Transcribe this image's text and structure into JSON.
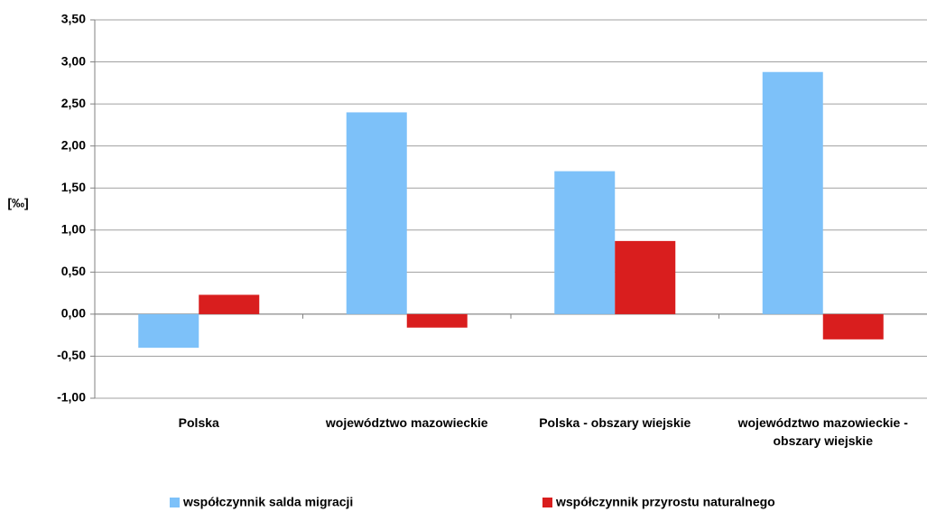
{
  "chart_data": {
    "type": "bar",
    "y_axis_label": "[‰]",
    "categories": [
      "Polska",
      "województwo mazowieckie",
      "Polska - obszary wiejskie",
      "województwo mazowieckie - obszary wiejskie"
    ],
    "series": [
      {
        "name": "współczynnik salda migracji",
        "color": "#7dc1f9",
        "values": [
          -0.4,
          2.4,
          1.7,
          2.88
        ]
      },
      {
        "name": "współczynnik przyrostu naturalnego",
        "color": "#d91e1e",
        "values": [
          0.23,
          -0.16,
          0.87,
          -0.3
        ]
      }
    ],
    "ylim": [
      -1.0,
      3.5
    ],
    "yticks": [
      {
        "value": -1.0,
        "label": "-1,00"
      },
      {
        "value": -0.5,
        "label": "-0,50"
      },
      {
        "value": 0,
        "label": "0,00"
      },
      {
        "value": 0.5,
        "label": "0,50"
      },
      {
        "value": 1.0,
        "label": "1,00"
      },
      {
        "value": 1.5,
        "label": "1,50"
      },
      {
        "value": 2.0,
        "label": "2,00"
      },
      {
        "value": 2.5,
        "label": "2,50"
      },
      {
        "value": 3.0,
        "label": "3,00"
      },
      {
        "value": 3.5,
        "label": "3,50"
      }
    ],
    "grid": true
  }
}
